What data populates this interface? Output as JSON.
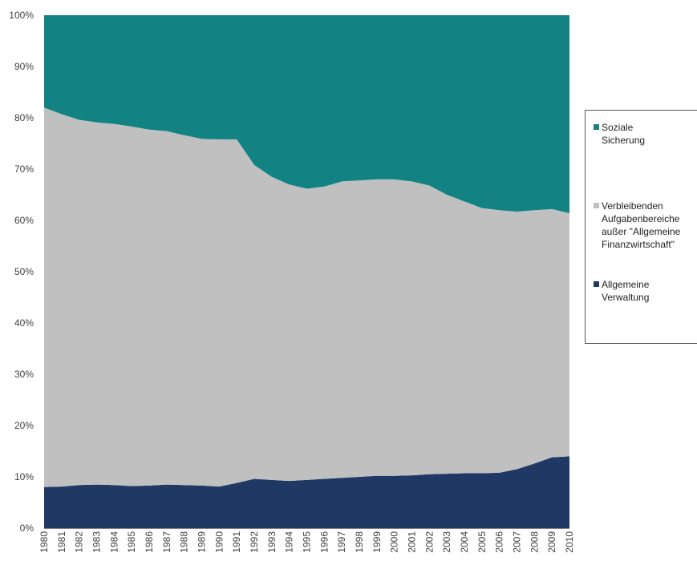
{
  "chart_data": {
    "type": "area",
    "stacked": true,
    "normalized_percent": true,
    "x": [
      "1980",
      "1981",
      "1982",
      "1983",
      "1984",
      "1985",
      "1986",
      "1987",
      "1988",
      "1989",
      "1990",
      "1991",
      "1992",
      "1993",
      "1994",
      "1995",
      "1996",
      "1997",
      "1998",
      "1999",
      "2000",
      "2001",
      "2002",
      "2003",
      "2004",
      "2005",
      "2006",
      "2007",
      "2008",
      "2009",
      "2010"
    ],
    "yticks": [
      "0%",
      "10%",
      "20%",
      "30%",
      "40%",
      "50%",
      "60%",
      "70%",
      "80%",
      "90%",
      "100%"
    ],
    "ylim": [
      0,
      100
    ],
    "grid": false,
    "legend_position": "right",
    "series": [
      {
        "name": "Allgemeine Verwaltung",
        "legend_label": "Allgemeine\nVerwaltung",
        "color": "#1f3864",
        "values": [
          8.0,
          8.1,
          8.4,
          8.5,
          8.4,
          8.2,
          8.3,
          8.5,
          8.4,
          8.3,
          8.1,
          8.8,
          9.6,
          9.4,
          9.2,
          9.4,
          9.6,
          9.8,
          10.0,
          10.2,
          10.2,
          10.3,
          10.5,
          10.6,
          10.7,
          10.7,
          10.8,
          11.5,
          12.6,
          13.8,
          14.0
        ]
      },
      {
        "name": "Verbleibenden Aufgabenbereiche außer \"Allgemeine Finanzwirtschaft\"",
        "legend_label": "Verbleibenden\nAufgabenbereiche\naußer \"Allgemeine\nFinanzwirtschaft\"",
        "color": "#c0c0c0",
        "values": [
          74.0,
          72.6,
          71.2,
          70.6,
          70.4,
          70.1,
          69.4,
          68.9,
          68.2,
          67.6,
          67.7,
          67.0,
          61.2,
          59.1,
          57.8,
          56.8,
          57.0,
          57.8,
          57.8,
          57.8,
          57.8,
          57.3,
          56.3,
          54.4,
          53.0,
          51.7,
          51.2,
          50.2,
          49.4,
          48.4,
          47.4
        ]
      },
      {
        "name": "Soziale Sicherung",
        "legend_label": "Soziale\nSicherung",
        "color": "#128282",
        "values": [
          18.0,
          19.3,
          20.4,
          20.9,
          21.2,
          21.7,
          22.3,
          22.6,
          23.4,
          24.1,
          24.2,
          24.2,
          29.2,
          31.5,
          33.0,
          33.8,
          33.4,
          32.4,
          32.2,
          32.0,
          32.0,
          32.4,
          33.2,
          35.0,
          36.3,
          37.6,
          38.0,
          38.3,
          38.0,
          37.8,
          38.6
        ]
      }
    ]
  }
}
